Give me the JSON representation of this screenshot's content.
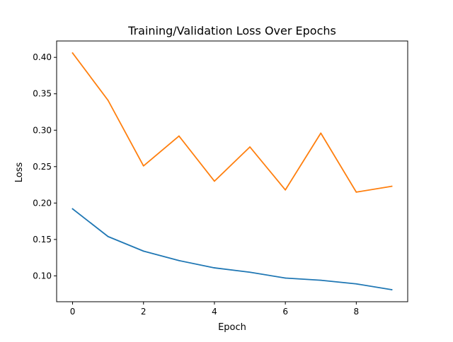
{
  "chart_data": {
    "type": "line",
    "title": "Training/Validation Loss Over Epochs",
    "xlabel": "Epoch",
    "ylabel": "Loss",
    "x": [
      0,
      1,
      2,
      3,
      4,
      5,
      6,
      7,
      8,
      9
    ],
    "series": [
      {
        "color": "#1f77b4",
        "values": [
          0.192,
          0.154,
          0.134,
          0.121,
          0.111,
          0.105,
          0.097,
          0.094,
          0.089,
          0.081
        ]
      },
      {
        "color": "#ff7f0e",
        "values": [
          0.406,
          0.341,
          0.251,
          0.292,
          0.23,
          0.277,
          0.218,
          0.296,
          0.215,
          0.223
        ]
      }
    ],
    "xlim": [
      -0.45,
      9.45
    ],
    "ylim": [
      0.0645,
      0.4225
    ],
    "xticks": [
      0,
      2,
      4,
      6,
      8
    ],
    "xtick_labels": [
      "0",
      "2",
      "4",
      "6",
      "8"
    ],
    "yticks": [
      0.1,
      0.15,
      0.2,
      0.25,
      0.3,
      0.35,
      0.4
    ],
    "ytick_labels": [
      "0.10",
      "0.15",
      "0.20",
      "0.25",
      "0.30",
      "0.35",
      "0.40"
    ],
    "grid": false,
    "legend": false
  }
}
